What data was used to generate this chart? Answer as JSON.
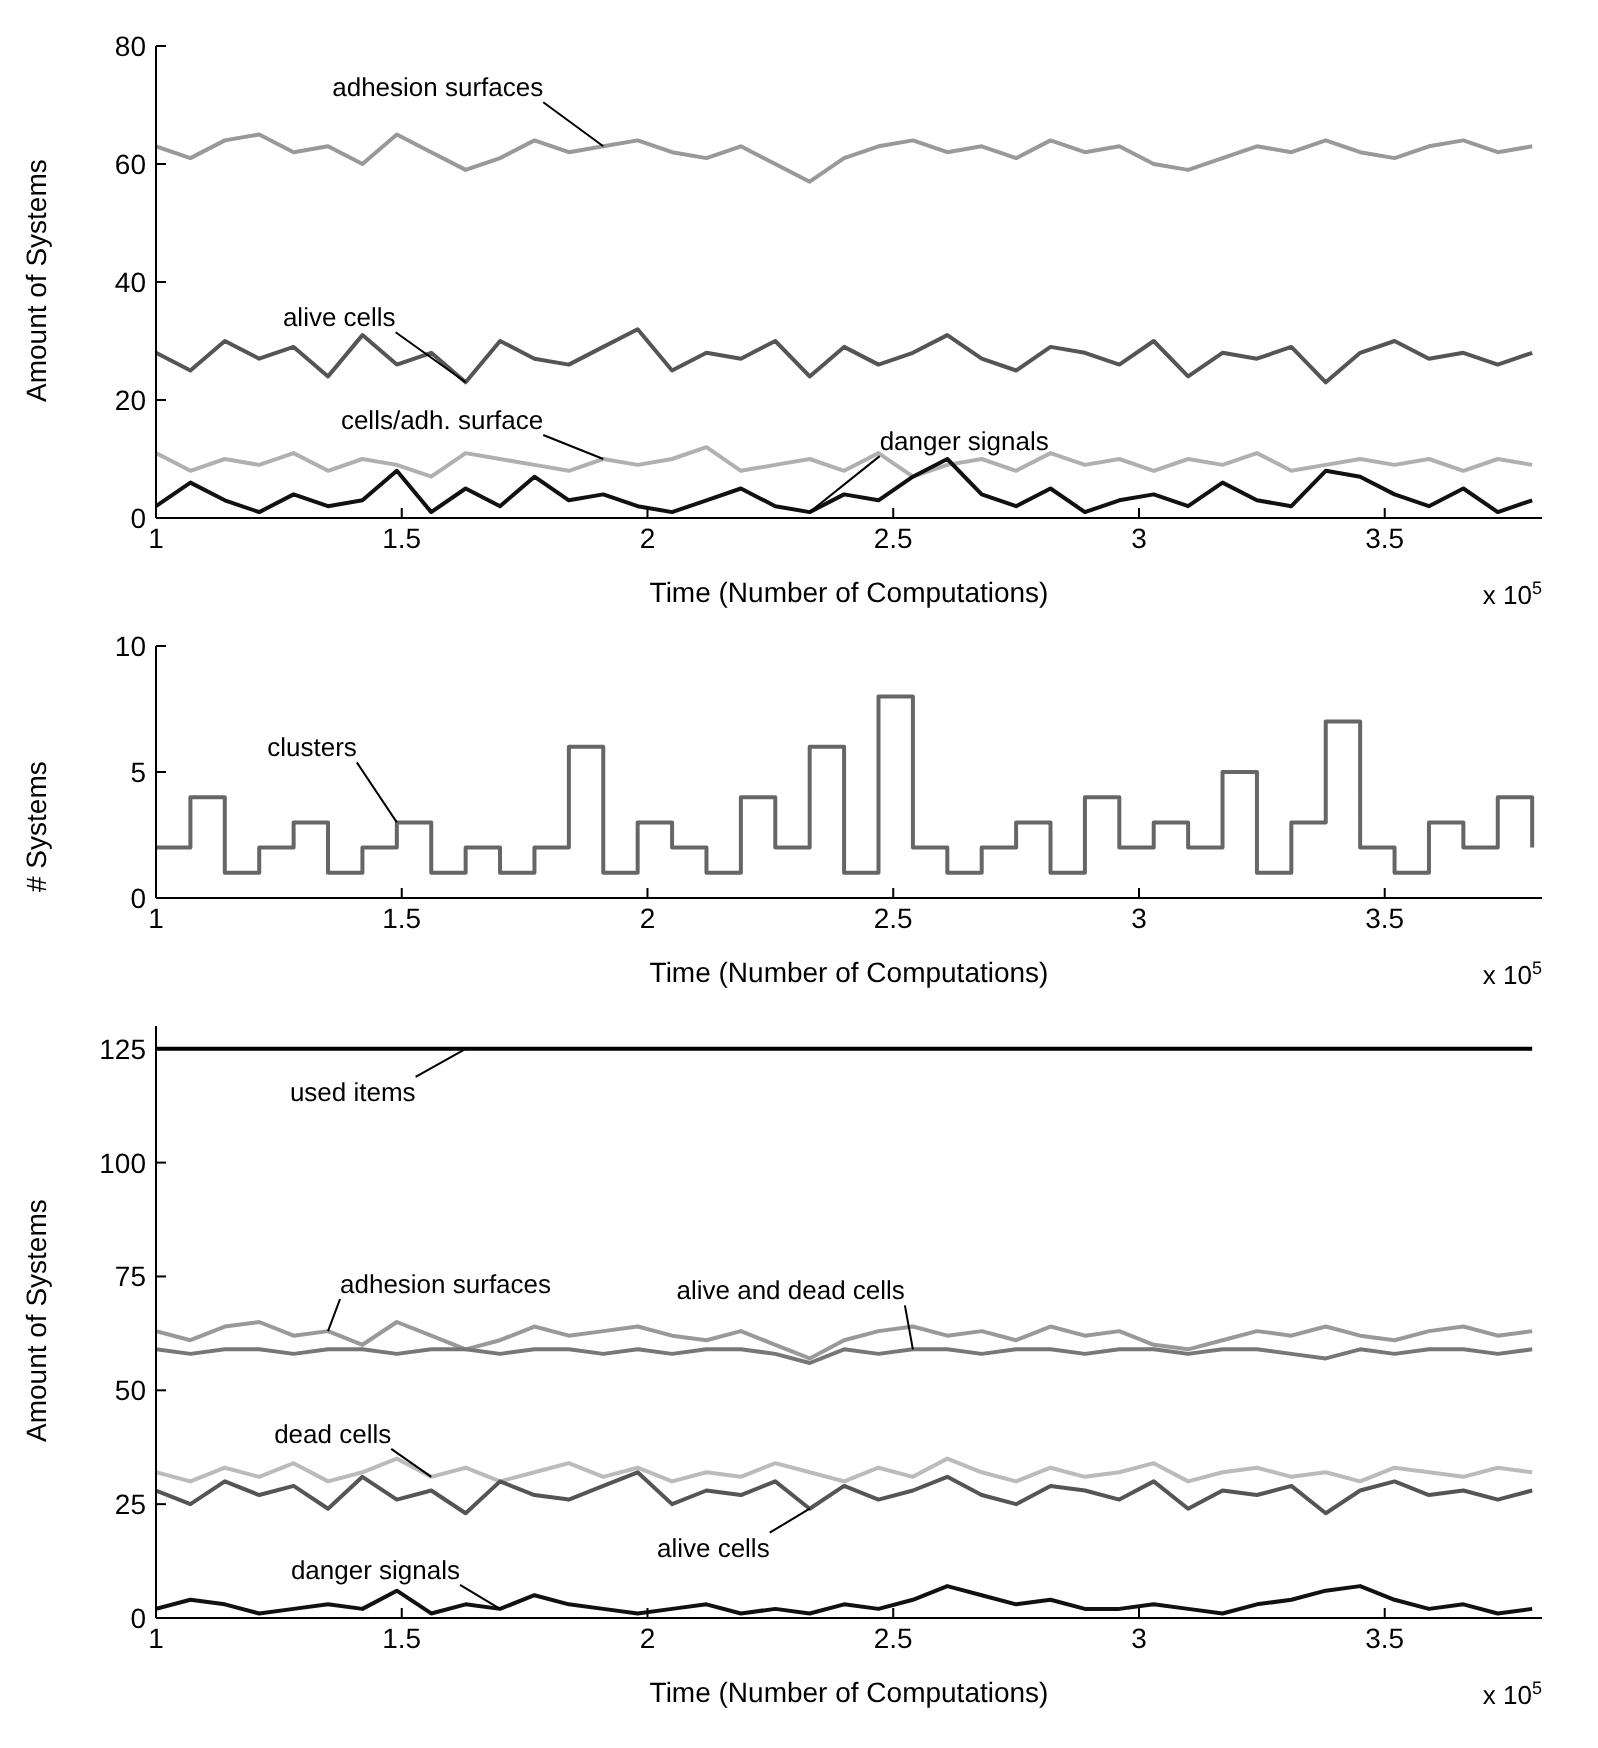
{
  "chart_data": [
    {
      "type": "line",
      "xlabel": "Time (Number of Computations)",
      "ylabel": "Amount of Systems",
      "xlim": [
        1,
        3.82
      ],
      "xticks": [
        1,
        1.5,
        2,
        2.5,
        3,
        3.5
      ],
      "ylim": [
        0,
        80
      ],
      "yticks": [
        0,
        20,
        40,
        60,
        80
      ],
      "x": [
        1,
        1.07,
        1.14,
        1.21,
        1.28,
        1.35,
        1.42,
        1.49,
        1.56,
        1.63,
        1.7,
        1.77,
        1.84,
        1.91,
        1.98,
        2.05,
        2.12,
        2.19,
        2.26,
        2.33,
        2.4,
        2.47,
        2.54,
        2.61,
        2.68,
        2.75,
        2.82,
        2.89,
        2.96,
        3.03,
        3.1,
        3.17,
        3.24,
        3.31,
        3.38,
        3.45,
        3.52,
        3.59,
        3.66,
        3.73,
        3.8
      ],
      "series": [
        {
          "color": "#999999",
          "values": [
            63,
            61,
            64,
            65,
            62,
            63,
            60,
            65,
            62,
            59,
            61,
            64,
            62,
            63,
            64,
            62,
            61,
            63,
            60,
            57,
            61,
            63,
            64,
            62,
            63,
            61,
            64,
            62,
            63,
            60,
            59,
            61,
            63,
            62,
            64,
            62,
            61,
            63,
            64,
            62,
            63
          ]
        },
        {
          "color": "#555555",
          "values": [
            28,
            25,
            30,
            27,
            29,
            24,
            31,
            26,
            28,
            23,
            30,
            27,
            26,
            29,
            32,
            25,
            28,
            27,
            30,
            24,
            29,
            26,
            28,
            31,
            27,
            25,
            29,
            28,
            26,
            30,
            24,
            28,
            27,
            29,
            23,
            28,
            30,
            27,
            28,
            26,
            28
          ]
        },
        {
          "color": "#b0b0b0",
          "values": [
            11,
            8,
            10,
            9,
            11,
            8,
            10,
            9,
            7,
            11,
            10,
            9,
            8,
            10,
            9,
            10,
            12,
            8,
            9,
            10,
            8,
            11,
            7,
            9,
            10,
            8,
            11,
            9,
            10,
            8,
            10,
            9,
            11,
            8,
            9,
            10,
            9,
            10,
            8,
            10,
            9
          ]
        },
        {
          "color": "#111111",
          "values": [
            2,
            6,
            3,
            1,
            4,
            2,
            3,
            8,
            1,
            5,
            2,
            7,
            3,
            4,
            2,
            1,
            3,
            5,
            2,
            1,
            4,
            3,
            7,
            10,
            4,
            2,
            5,
            1,
            3,
            4,
            2,
            6,
            3,
            2,
            8,
            7,
            4,
            2,
            5,
            1,
            3
          ]
        }
      ],
      "annotations": [
        {
          "text": "adhesion surfaces",
          "x": 1.91,
          "y": 63
        },
        {
          "text": "alive cells",
          "x": 1.63,
          "y": 23
        },
        {
          "text": "cells/adh. surface",
          "x": 1.91,
          "y": 10
        },
        {
          "text": "danger signals",
          "x": 2.33,
          "y": 1
        },
        "x 10$^{5}$"
      ]
    },
    {
      "type": "step",
      "xlabel": "Time (Number of Computations)",
      "ylabel": "# Systems",
      "xlim": [
        1,
        3.82
      ],
      "xticks": [
        1,
        1.5,
        2,
        2.5,
        3,
        3.5
      ],
      "ylim": [
        0,
        10
      ],
      "yticks": [
        0,
        5,
        10
      ],
      "x": [
        1,
        1.07,
        1.14,
        1.21,
        1.28,
        1.35,
        1.42,
        1.49,
        1.56,
        1.63,
        1.7,
        1.77,
        1.84,
        1.91,
        1.98,
        2.05,
        2.12,
        2.19,
        2.26,
        2.33,
        2.4,
        2.47,
        2.54,
        2.61,
        2.68,
        2.75,
        2.82,
        2.89,
        2.96,
        3.03,
        3.1,
        3.17,
        3.24,
        3.31,
        3.38,
        3.45,
        3.52,
        3.59,
        3.66,
        3.73,
        3.8
      ],
      "series": [
        {
          "color": "#666666",
          "values": [
            2,
            4,
            1,
            2,
            3,
            1,
            2,
            3,
            1,
            2,
            1,
            2,
            6,
            1,
            3,
            2,
            1,
            4,
            2,
            6,
            1,
            8,
            2,
            1,
            2,
            3,
            1,
            4,
            2,
            3,
            2,
            5,
            1,
            3,
            7,
            2,
            1,
            3,
            2,
            4,
            2
          ]
        }
      ],
      "annotations": [
        {
          "text": "clusters",
          "x": 1.49,
          "y": 3
        },
        "x 10$^{5}$"
      ]
    },
    {
      "type": "line",
      "xlabel": "Time (Number of Computations)",
      "ylabel": "Amount of Systems",
      "xlim": [
        1,
        3.82
      ],
      "xticks": [
        1,
        1.5,
        2,
        2.5,
        3,
        3.5
      ],
      "ylim": [
        0,
        130
      ],
      "yticks": [
        0,
        25,
        50,
        75,
        100,
        125
      ],
      "x": [
        1,
        1.07,
        1.14,
        1.21,
        1.28,
        1.35,
        1.42,
        1.49,
        1.56,
        1.63,
        1.7,
        1.77,
        1.84,
        1.91,
        1.98,
        2.05,
        2.12,
        2.19,
        2.26,
        2.33,
        2.4,
        2.47,
        2.54,
        2.61,
        2.68,
        2.75,
        2.82,
        2.89,
        2.96,
        3.03,
        3.1,
        3.17,
        3.24,
        3.31,
        3.38,
        3.45,
        3.52,
        3.59,
        3.66,
        3.73,
        3.8
      ],
      "series": [
        {
          "color": "#000000",
          "values": [
            125,
            125,
            125,
            125,
            125,
            125,
            125,
            125,
            125,
            125,
            125,
            125,
            125,
            125,
            125,
            125,
            125,
            125,
            125,
            125,
            125,
            125,
            125,
            125,
            125,
            125,
            125,
            125,
            125,
            125,
            125,
            125,
            125,
            125,
            125,
            125,
            125,
            125,
            125,
            125,
            125
          ]
        },
        {
          "color": "#999999",
          "values": [
            63,
            61,
            64,
            65,
            62,
            63,
            60,
            65,
            62,
            59,
            61,
            64,
            62,
            63,
            64,
            62,
            61,
            63,
            60,
            57,
            61,
            63,
            64,
            62,
            63,
            61,
            64,
            62,
            63,
            60,
            59,
            61,
            63,
            62,
            64,
            62,
            61,
            63,
            64,
            62,
            63
          ]
        },
        {
          "color": "#777777",
          "values": [
            59,
            58,
            59,
            59,
            58,
            59,
            59,
            58,
            59,
            59,
            58,
            59,
            59,
            58,
            59,
            58,
            59,
            59,
            58,
            56,
            59,
            58,
            59,
            59,
            58,
            59,
            59,
            58,
            59,
            59,
            58,
            59,
            59,
            58,
            57,
            59,
            58,
            59,
            59,
            58,
            59
          ]
        },
        {
          "color": "#bbbbbb",
          "values": [
            32,
            30,
            33,
            31,
            34,
            30,
            32,
            35,
            31,
            33,
            30,
            32,
            34,
            31,
            33,
            30,
            32,
            31,
            34,
            32,
            30,
            33,
            31,
            35,
            32,
            30,
            33,
            31,
            32,
            34,
            30,
            32,
            33,
            31,
            32,
            30,
            33,
            32,
            31,
            33,
            32
          ]
        },
        {
          "color": "#555555",
          "values": [
            28,
            25,
            30,
            27,
            29,
            24,
            31,
            26,
            28,
            23,
            30,
            27,
            26,
            29,
            32,
            25,
            28,
            27,
            30,
            24,
            29,
            26,
            28,
            31,
            27,
            25,
            29,
            28,
            26,
            30,
            24,
            28,
            27,
            29,
            23,
            28,
            30,
            27,
            28,
            26,
            28
          ]
        },
        {
          "color": "#111111",
          "values": [
            2,
            4,
            3,
            1,
            2,
            3,
            2,
            6,
            1,
            3,
            2,
            5,
            3,
            2,
            1,
            2,
            3,
            1,
            2,
            1,
            3,
            2,
            4,
            7,
            5,
            3,
            4,
            2,
            2,
            3,
            2,
            1,
            3,
            4,
            6,
            7,
            4,
            2,
            3,
            1,
            2
          ]
        }
      ],
      "annotations": [
        {
          "text": "used items",
          "x": 1.63,
          "y": 125
        },
        {
          "text": "adhesion surfaces",
          "x": 1.35,
          "y": 63
        },
        {
          "text": "alive and dead cells",
          "x": 2.54,
          "y": 59
        },
        {
          "text": "dead cells",
          "x": 1.56,
          "y": 31
        },
        {
          "text": "alive cells",
          "x": 2.33,
          "y": 24
        },
        {
          "text": "danger signals",
          "x": 1.7,
          "y": 2
        },
        "x 10$^{5}$"
      ]
    }
  ]
}
